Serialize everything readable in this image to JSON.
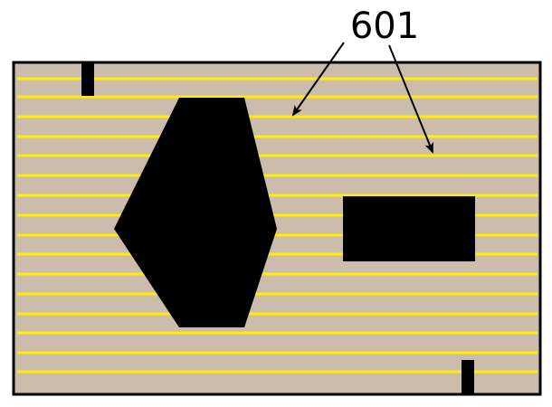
{
  "figure": {
    "reference_label": "601"
  },
  "colors": {
    "substrate": "#cbbcac",
    "stripe": "#ffee00",
    "feature": "#000000",
    "outline": "#000000",
    "background": "#ffffff"
  }
}
